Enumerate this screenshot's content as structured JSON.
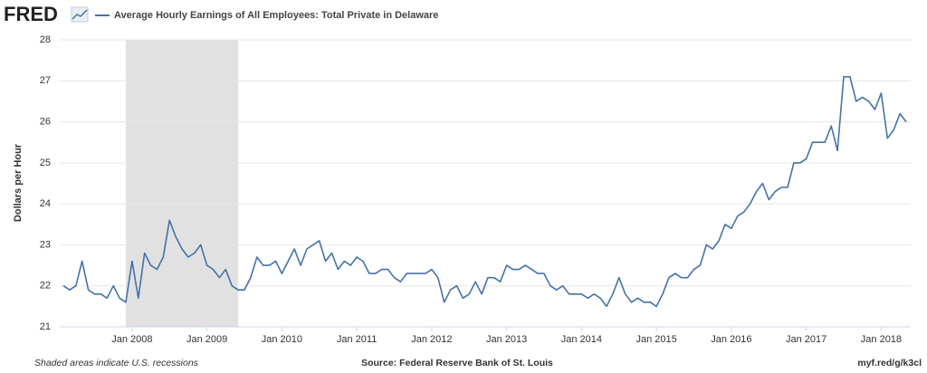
{
  "brand": "FRED",
  "chart_data": {
    "type": "line",
    "y_label": "Dollars per Hour",
    "footer_left": "Shaded areas indicate U.S. recessions",
    "footer_center": "Source: Federal Reserve Bank of St. Louis",
    "footer_right": "myf.red/g/k3cl",
    "x": [
      "2007-02",
      "2007-03",
      "2007-04",
      "2007-05",
      "2007-06",
      "2007-07",
      "2007-08",
      "2007-09",
      "2007-10",
      "2007-11",
      "2007-12",
      "2008-01",
      "2008-02",
      "2008-03",
      "2008-04",
      "2008-05",
      "2008-06",
      "2008-07",
      "2008-08",
      "2008-09",
      "2008-10",
      "2008-11",
      "2008-12",
      "2009-01",
      "2009-02",
      "2009-03",
      "2009-04",
      "2009-05",
      "2009-06",
      "2009-07",
      "2009-08",
      "2009-09",
      "2009-10",
      "2009-11",
      "2009-12",
      "2010-01",
      "2010-02",
      "2010-03",
      "2010-04",
      "2010-05",
      "2010-06",
      "2010-07",
      "2010-08",
      "2010-09",
      "2010-10",
      "2010-11",
      "2010-12",
      "2011-01",
      "2011-02",
      "2011-03",
      "2011-04",
      "2011-05",
      "2011-06",
      "2011-07",
      "2011-08",
      "2011-09",
      "2011-10",
      "2011-11",
      "2011-12",
      "2012-01",
      "2012-02",
      "2012-03",
      "2012-04",
      "2012-05",
      "2012-06",
      "2012-07",
      "2012-08",
      "2012-09",
      "2012-10",
      "2012-11",
      "2012-12",
      "2013-01",
      "2013-02",
      "2013-03",
      "2013-04",
      "2013-05",
      "2013-06",
      "2013-07",
      "2013-08",
      "2013-09",
      "2013-10",
      "2013-11",
      "2013-12",
      "2014-01",
      "2014-02",
      "2014-03",
      "2014-04",
      "2014-05",
      "2014-06",
      "2014-07",
      "2014-08",
      "2014-09",
      "2014-10",
      "2014-11",
      "2014-12",
      "2015-01",
      "2015-02",
      "2015-03",
      "2015-04",
      "2015-05",
      "2015-06",
      "2015-07",
      "2015-08",
      "2015-09",
      "2015-10",
      "2015-11",
      "2015-12",
      "2016-01",
      "2016-02",
      "2016-03",
      "2016-04",
      "2016-05",
      "2016-06",
      "2016-07",
      "2016-08",
      "2016-09",
      "2016-10",
      "2016-11",
      "2016-12",
      "2017-01",
      "2017-02",
      "2017-03",
      "2017-04",
      "2017-05",
      "2017-06",
      "2017-07",
      "2017-08",
      "2017-09",
      "2017-10",
      "2017-11",
      "2017-12",
      "2018-01",
      "2018-02",
      "2018-03",
      "2018-04",
      "2018-05"
    ],
    "series": [
      {
        "name": "Average Hourly Earnings of All Employees: Total Private in Delaware",
        "color": "#4572a7",
        "values": [
          22.0,
          21.9,
          22.0,
          22.6,
          21.9,
          21.8,
          21.8,
          21.7,
          22.0,
          21.7,
          21.6,
          22.6,
          21.7,
          22.8,
          22.5,
          22.4,
          22.7,
          23.6,
          23.2,
          22.9,
          22.7,
          22.8,
          23.0,
          22.5,
          22.4,
          22.2,
          22.4,
          22.0,
          21.9,
          21.9,
          22.2,
          22.7,
          22.5,
          22.5,
          22.6,
          22.3,
          22.6,
          22.9,
          22.5,
          22.9,
          23.0,
          23.1,
          22.6,
          22.8,
          22.4,
          22.6,
          22.5,
          22.7,
          22.6,
          22.3,
          22.3,
          22.4,
          22.4,
          22.2,
          22.1,
          22.3,
          22.3,
          22.3,
          22.3,
          22.4,
          22.2,
          21.6,
          21.9,
          22.0,
          21.7,
          21.8,
          22.1,
          21.8,
          22.2,
          22.2,
          22.1,
          22.5,
          22.4,
          22.4,
          22.5,
          22.4,
          22.3,
          22.3,
          22.0,
          21.9,
          22.0,
          21.8,
          21.8,
          21.8,
          21.7,
          21.8,
          21.7,
          21.5,
          21.8,
          22.2,
          21.8,
          21.6,
          21.7,
          21.6,
          21.6,
          21.5,
          21.8,
          22.2,
          22.3,
          22.2,
          22.2,
          22.4,
          22.5,
          23.0,
          22.9,
          23.1,
          23.5,
          23.4,
          23.7,
          23.8,
          24.0,
          24.3,
          24.5,
          24.1,
          24.3,
          24.4,
          24.4,
          25.0,
          25.0,
          25.1,
          25.5,
          25.5,
          25.5,
          25.9,
          25.3,
          27.1,
          27.1,
          26.5,
          26.6,
          26.5,
          26.3,
          26.7,
          25.6,
          25.8,
          26.2,
          26.0
        ]
      }
    ],
    "recessions": [
      {
        "start": "2007-12",
        "end": "2009-06"
      }
    ],
    "recession_color": "#e1e1e1",
    "xlim": [
      "2007-02",
      "2018-05"
    ],
    "xticks": [
      {
        "value": "2008-01",
        "label": "Jan 2008"
      },
      {
        "value": "2009-01",
        "label": "Jan 2009"
      },
      {
        "value": "2010-01",
        "label": "Jan 2010"
      },
      {
        "value": "2011-01",
        "label": "Jan 2011"
      },
      {
        "value": "2012-01",
        "label": "Jan 2012"
      },
      {
        "value": "2013-01",
        "label": "Jan 2013"
      },
      {
        "value": "2014-01",
        "label": "Jan 2014"
      },
      {
        "value": "2015-01",
        "label": "Jan 2015"
      },
      {
        "value": "2016-01",
        "label": "Jan 2016"
      },
      {
        "value": "2017-01",
        "label": "Jan 2017"
      },
      {
        "value": "2018-01",
        "label": "Jan 2018"
      }
    ],
    "ylim": [
      21,
      28
    ],
    "yticks": [
      21,
      22,
      23,
      24,
      25,
      26,
      27,
      28
    ],
    "grid": true
  }
}
